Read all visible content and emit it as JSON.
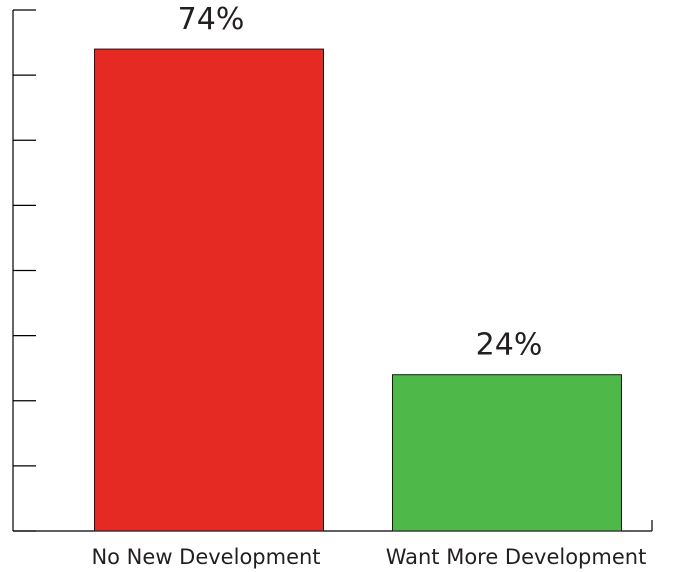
{
  "chart_data": {
    "type": "bar",
    "categories": [
      "No New Development",
      "Want More Development"
    ],
    "values": [
      74,
      24
    ],
    "data_labels": [
      "74%",
      "24%"
    ],
    "colors": [
      "#e52a24",
      "#4eb848"
    ],
    "title": "",
    "xlabel": "",
    "ylabel": "",
    "ylim": [
      0,
      80
    ],
    "y_ticks": [
      0,
      10,
      20,
      30,
      40,
      50,
      60,
      70,
      80
    ],
    "y_tick_labels_shown": false,
    "grid": false,
    "legend": "none"
  }
}
